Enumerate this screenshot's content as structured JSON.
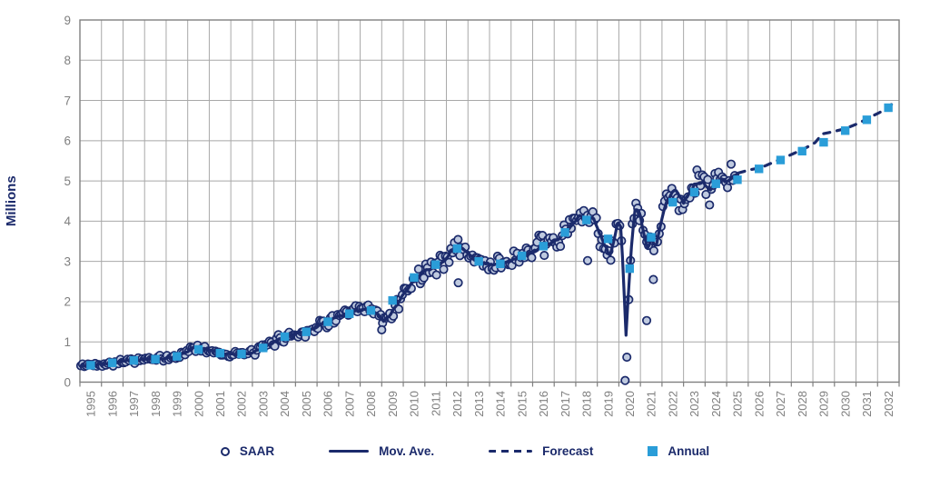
{
  "chart": {
    "y_axis_title": "Millions",
    "y_ticks": [
      0,
      1,
      2,
      3,
      4,
      5,
      6,
      7,
      8,
      9
    ],
    "x_years": [
      1995,
      1996,
      1997,
      1998,
      1999,
      2000,
      2001,
      2002,
      2003,
      2004,
      2005,
      2006,
      2007,
      2008,
      2009,
      2010,
      2011,
      2012,
      2013,
      2014,
      2015,
      2016,
      2017,
      2018,
      2019,
      2020,
      2021,
      2022,
      2023,
      2024,
      2025,
      2026,
      2027,
      2028,
      2029,
      2030,
      2031,
      2032
    ]
  },
  "legend": {
    "items": [
      {
        "label": "SAAR",
        "marker": "open-circle"
      },
      {
        "label": "Mov. Ave.",
        "marker": "solid-line"
      },
      {
        "label": "Forecast",
        "marker": "dashed-line"
      },
      {
        "label": "Annual",
        "marker": "filled-square"
      }
    ]
  },
  "colors": {
    "navy": "#1B2A6B",
    "light_blue": "#2A9DD8",
    "saar_fill": "#BFCADF",
    "grid": "#A8A8A8",
    "axis": "#7F7F7F",
    "tick_label": "#7F7F7F"
  },
  "chart_data": {
    "type": "scatter-line-combo",
    "title": "",
    "xlabel": "",
    "ylabel": "Millions",
    "x_range": [
      1995,
      2033
    ],
    "y_range": [
      0,
      9
    ],
    "grid": "both",
    "legend_position": "bottom",
    "annual": {
      "note": "light blue squares, one per year, plotted mid-year, units = millions",
      "years": [
        1995,
        1996,
        1997,
        1998,
        1999,
        2000,
        2001,
        2002,
        2003,
        2004,
        2005,
        2006,
        2007,
        2008,
        2009,
        2010,
        2011,
        2012,
        2013,
        2014,
        2015,
        2016,
        2017,
        2018,
        2019,
        2020,
        2021,
        2022,
        2023,
        2024,
        2025,
        2026,
        2027,
        2028,
        2029,
        2030,
        2031,
        2032
      ],
      "values": [
        0.42,
        0.48,
        0.54,
        0.57,
        0.64,
        0.81,
        0.72,
        0.7,
        0.85,
        1.13,
        1.25,
        1.5,
        1.7,
        1.78,
        2.03,
        2.6,
        2.92,
        3.32,
        3.0,
        2.94,
        3.14,
        3.38,
        3.72,
        4.03,
        3.56,
        2.82,
        3.6,
        4.47,
        4.72,
        4.93,
        5.03,
        5.3,
        5.52,
        5.74,
        5.96,
        6.25,
        6.52,
        6.82
      ]
    },
    "moving_average": {
      "note": "solid navy line anchor points [decimal_year, millions]",
      "points": [
        [
          1995.0,
          0.4
        ],
        [
          1995.5,
          0.43
        ],
        [
          1996.0,
          0.45
        ],
        [
          1996.5,
          0.48
        ],
        [
          1997.0,
          0.52
        ],
        [
          1997.5,
          0.55
        ],
        [
          1998.0,
          0.56
        ],
        [
          1998.5,
          0.57
        ],
        [
          1999.0,
          0.59
        ],
        [
          1999.5,
          0.63
        ],
        [
          1999.9,
          0.74
        ],
        [
          2000.2,
          0.84
        ],
        [
          2000.5,
          0.87
        ],
        [
          2000.9,
          0.8
        ],
        [
          2001.4,
          0.73
        ],
        [
          2001.9,
          0.7
        ],
        [
          2002.4,
          0.69
        ],
        [
          2002.9,
          0.72
        ],
        [
          2003.3,
          0.79
        ],
        [
          2003.7,
          0.92
        ],
        [
          2004.2,
          1.06
        ],
        [
          2004.6,
          1.14
        ],
        [
          2005.0,
          1.19
        ],
        [
          2005.5,
          1.26
        ],
        [
          2006.0,
          1.38
        ],
        [
          2006.5,
          1.51
        ],
        [
          2007.0,
          1.62
        ],
        [
          2007.5,
          1.71
        ],
        [
          2008.0,
          1.78
        ],
        [
          2008.4,
          1.82
        ],
        [
          2008.8,
          1.68
        ],
        [
          2009.1,
          1.52
        ],
        [
          2009.4,
          1.68
        ],
        [
          2009.8,
          2.02
        ],
        [
          2010.2,
          2.33
        ],
        [
          2010.6,
          2.6
        ],
        [
          2011.0,
          2.76
        ],
        [
          2011.5,
          2.88
        ],
        [
          2011.9,
          3.02
        ],
        [
          2012.3,
          3.3
        ],
        [
          2012.6,
          3.38
        ],
        [
          2012.9,
          3.24
        ],
        [
          2013.3,
          3.08
        ],
        [
          2013.7,
          2.97
        ],
        [
          2014.1,
          2.91
        ],
        [
          2014.5,
          2.94
        ],
        [
          2014.9,
          3.01
        ],
        [
          2015.3,
          3.09
        ],
        [
          2015.7,
          3.16
        ],
        [
          2016.1,
          3.27
        ],
        [
          2016.5,
          3.4
        ],
        [
          2016.9,
          3.44
        ],
        [
          2017.2,
          3.55
        ],
        [
          2017.6,
          3.76
        ],
        [
          2017.9,
          3.95
        ],
        [
          2018.2,
          4.14
        ],
        [
          2018.5,
          4.05
        ],
        [
          2018.8,
          4.08
        ],
        [
          2019.1,
          3.7
        ],
        [
          2019.35,
          3.4
        ],
        [
          2019.6,
          3.12
        ],
        [
          2019.95,
          3.95
        ],
        [
          2020.1,
          3.85
        ],
        [
          2020.22,
          2.5
        ],
        [
          2020.33,
          1.12
        ],
        [
          2020.45,
          2.3
        ],
        [
          2020.6,
          3.5
        ],
        [
          2020.75,
          4.28
        ],
        [
          2020.95,
          4.25
        ],
        [
          2021.15,
          3.7
        ],
        [
          2021.35,
          3.28
        ],
        [
          2021.5,
          3.62
        ],
        [
          2021.7,
          3.32
        ],
        [
          2021.95,
          3.95
        ],
        [
          2022.2,
          4.48
        ],
        [
          2022.6,
          4.8
        ],
        [
          2023.0,
          4.47
        ],
        [
          2023.5,
          4.9
        ],
        [
          2023.9,
          4.98
        ],
        [
          2024.2,
          4.76
        ],
        [
          2024.7,
          5.06
        ],
        [
          2025.0,
          4.96
        ],
        [
          2025.3,
          5.1
        ],
        [
          2025.55,
          5.2
        ]
      ]
    },
    "forecast": {
      "note": "dashed navy line anchor points [decimal_year, millions]",
      "points": [
        [
          2025.55,
          5.2
        ],
        [
          2026.1,
          5.28
        ],
        [
          2026.6,
          5.33
        ],
        [
          2027.1,
          5.45
        ],
        [
          2027.6,
          5.56
        ],
        [
          2028.1,
          5.68
        ],
        [
          2028.6,
          5.8
        ],
        [
          2029.1,
          5.95
        ],
        [
          2029.45,
          6.17
        ],
        [
          2029.9,
          6.22
        ],
        [
          2030.5,
          6.3
        ],
        [
          2031.1,
          6.43
        ],
        [
          2031.6,
          6.57
        ],
        [
          2032.1,
          6.7
        ],
        [
          2032.7,
          6.92
        ]
      ]
    },
    "saar": {
      "note": "monthly open-circle scatter following the moving average with noise; generated deterministically",
      "start": 1995.04,
      "end": 2025.38,
      "noise_base": 0.05,
      "noise_scale": 0.085,
      "seed": 42,
      "skip_ranges": [
        [
          2020.16,
          2020.52
        ]
      ],
      "outliers": [
        [
          2020.29,
          0.04
        ],
        [
          2020.37,
          0.62
        ],
        [
          2020.46,
          2.05
        ],
        [
          2021.29,
          1.53
        ],
        [
          2021.6,
          2.55
        ],
        [
          2012.55,
          2.47
        ],
        [
          2018.55,
          3.02
        ],
        [
          2009.0,
          1.3
        ]
      ]
    }
  }
}
